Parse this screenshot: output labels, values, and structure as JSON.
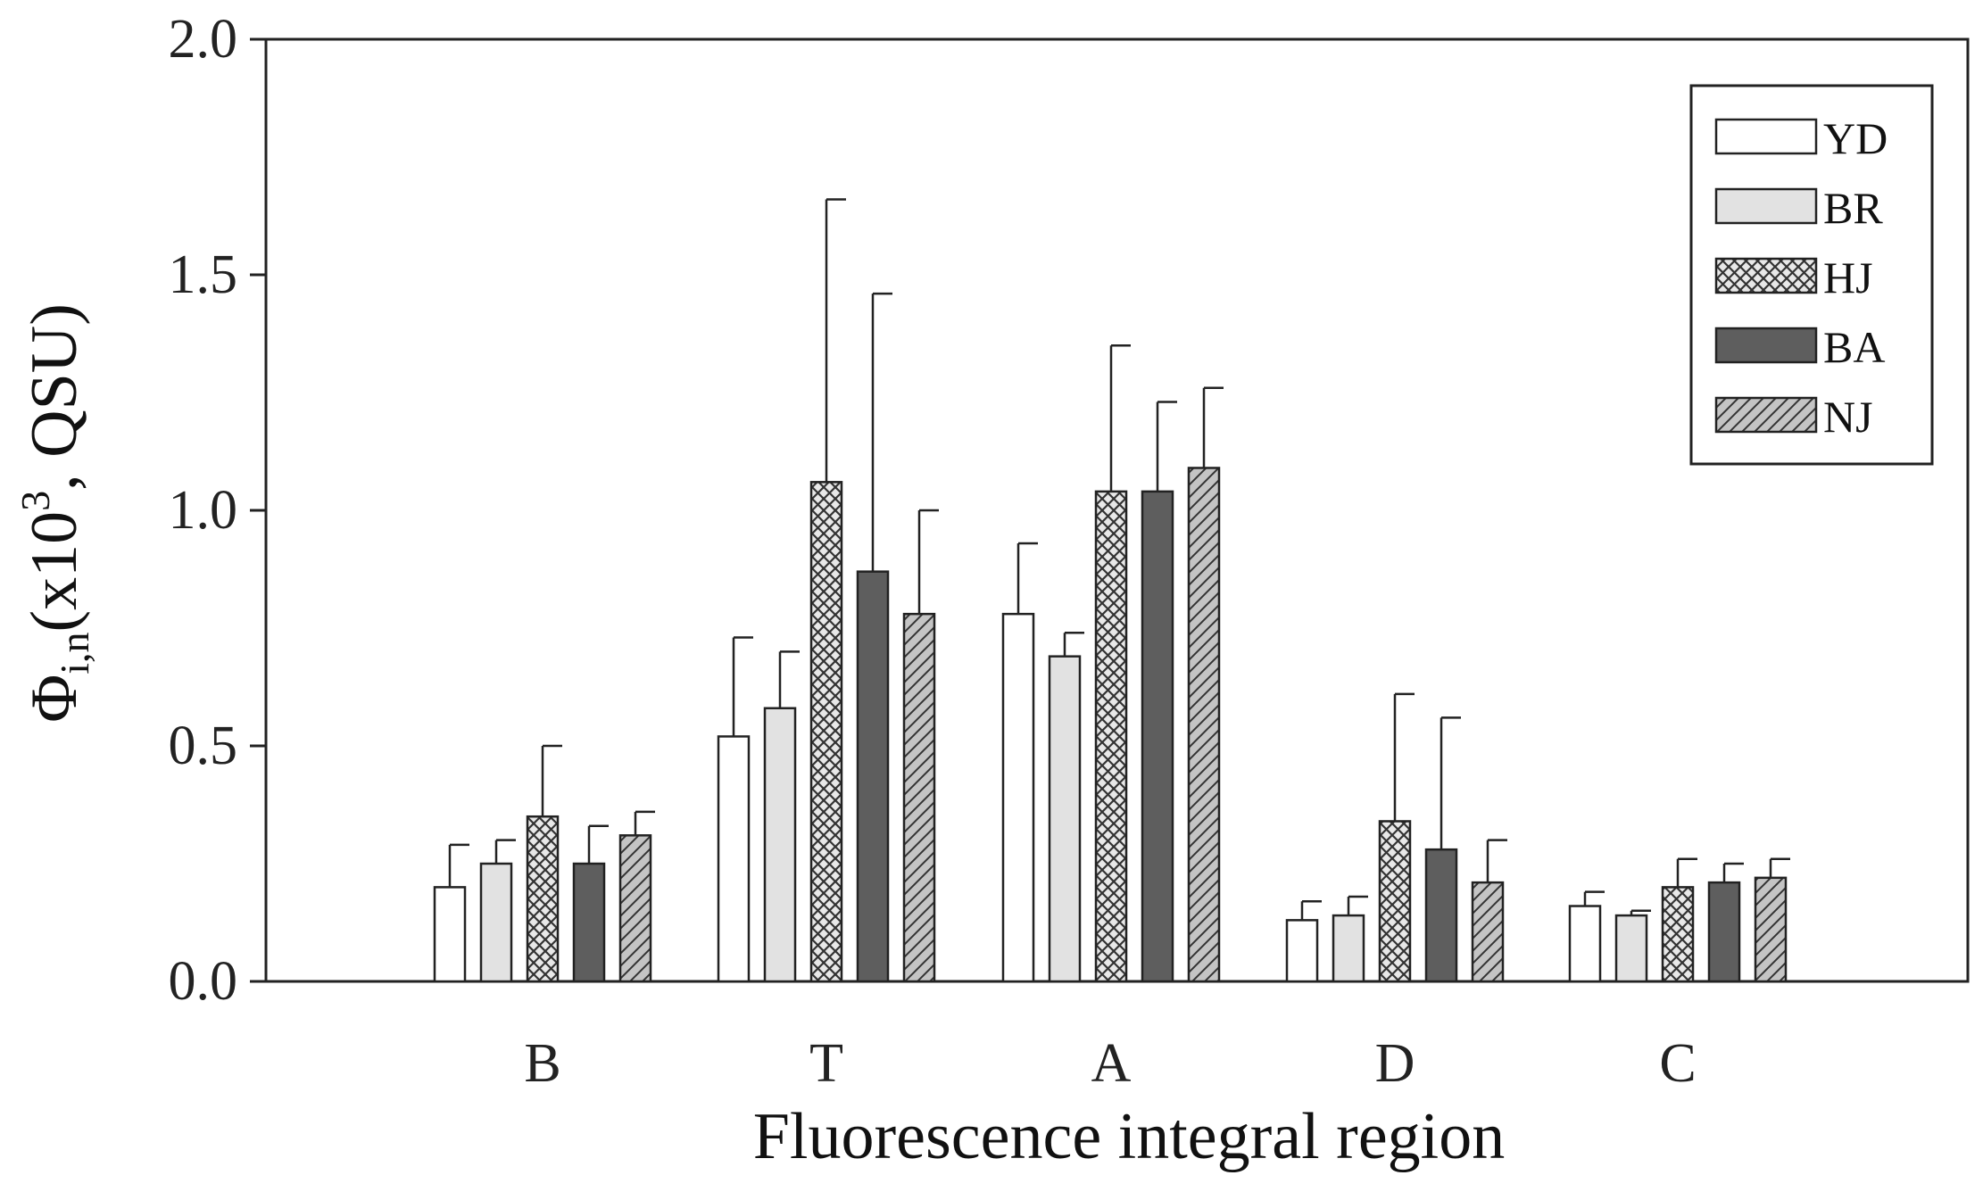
{
  "chart_data": {
    "type": "bar",
    "title": "",
    "xlabel": "Fluorescence integral region",
    "ylabel": {
      "main": "Φ",
      "sub": "i,n",
      "pre": "(x10",
      "sup": "3",
      "post": ", QSU)"
    },
    "ylim": [
      0,
      2.0
    ],
    "yticks": [
      "0.0",
      "0.5",
      "1.0",
      "1.5",
      "2.0"
    ],
    "categories": [
      "B",
      "T",
      "A",
      "D",
      "C"
    ],
    "legend_position": "top-right",
    "series": [
      {
        "name": "YD",
        "values": [
          0.2,
          0.52,
          0.78,
          0.13,
          0.16
        ],
        "errors": [
          0.09,
          0.21,
          0.15,
          0.04,
          0.03
        ],
        "fill": "#ffffff",
        "pattern": "none"
      },
      {
        "name": "BR",
        "values": [
          0.25,
          0.58,
          0.69,
          0.14,
          0.14
        ],
        "errors": [
          0.05,
          0.12,
          0.05,
          0.04,
          0.01
        ],
        "fill": "#e2e2e2",
        "pattern": "none"
      },
      {
        "name": "HJ",
        "values": [
          0.35,
          1.06,
          1.04,
          0.34,
          0.2
        ],
        "errors": [
          0.15,
          0.6,
          0.31,
          0.27,
          0.06
        ],
        "fill": "#e8e8e8",
        "pattern": "crosshatch"
      },
      {
        "name": "BA",
        "values": [
          0.25,
          0.87,
          1.04,
          0.28,
          0.21
        ],
        "errors": [
          0.08,
          0.59,
          0.19,
          0.28,
          0.04
        ],
        "fill": "#5e5e5e",
        "pattern": "none"
      },
      {
        "name": "NJ",
        "values": [
          0.31,
          0.78,
          1.09,
          0.21,
          0.22
        ],
        "errors": [
          0.05,
          0.22,
          0.17,
          0.09,
          0.04
        ],
        "fill": "#c4c4c4",
        "pattern": "diagonal"
      }
    ]
  }
}
